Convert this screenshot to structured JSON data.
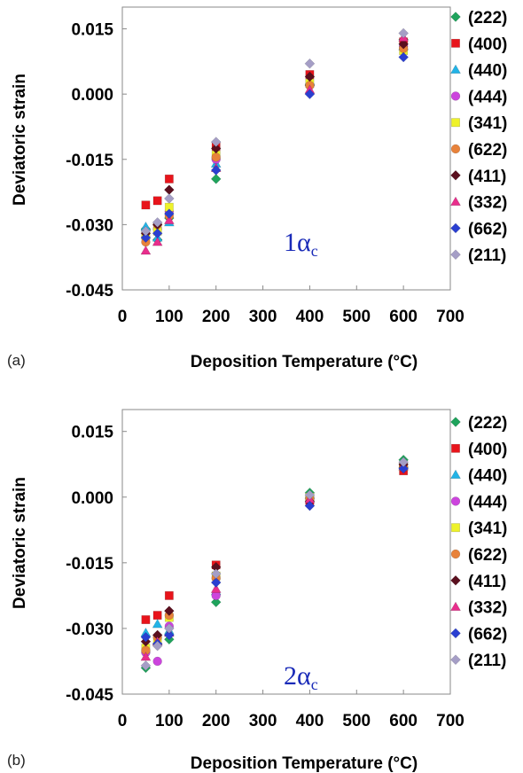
{
  "figure": {
    "panels": [
      "(a)",
      "(b)"
    ]
  },
  "chart_data": [
    {
      "type": "scatter",
      "panel": "(a)",
      "xlabel": "Deposition Temperature (°C)",
      "ylabel": "Deviatoric strain",
      "xlim": [
        0,
        700
      ],
      "ylim": [
        -0.045,
        0.02
      ],
      "xticks": [
        "0",
        "100",
        "200",
        "300",
        "400",
        "500",
        "600",
        "700"
      ],
      "yticks": [
        "0.015",
        "0.000",
        "-0.015",
        "-0.030",
        "-0.045"
      ],
      "annotation": {
        "main": "1α",
        "sub": "c"
      },
      "legend_position": "right",
      "series": [
        {
          "name": "(222)",
          "marker": "diamond",
          "color": "#1fa35c",
          "points": [
            [
              50,
              -0.031
            ],
            [
              75,
              -0.0335
            ],
            [
              100,
              -0.0285
            ],
            [
              200,
              -0.0195
            ],
            [
              400,
              0.002
            ],
            [
              600,
              0.0125
            ]
          ]
        },
        {
          "name": "(400)",
          "marker": "square",
          "color": "#e8141b",
          "points": [
            [
              50,
              -0.0255
            ],
            [
              75,
              -0.0245
            ],
            [
              100,
              -0.0195
            ],
            [
              200,
              -0.012
            ],
            [
              400,
              0.0045
            ],
            [
              600,
              0.012
            ]
          ]
        },
        {
          "name": "(440)",
          "marker": "triangle",
          "color": "#22b3e6",
          "points": [
            [
              50,
              -0.0305
            ],
            [
              75,
              -0.033
            ],
            [
              100,
              -0.0295
            ],
            [
              200,
              -0.016
            ],
            [
              400,
              0.003
            ],
            [
              600,
              0.011
            ]
          ]
        },
        {
          "name": "(444)",
          "marker": "circle",
          "color": "#cc44dd",
          "points": [
            [
              50,
              -0.033
            ],
            [
              75,
              -0.031
            ],
            [
              100,
              -0.027
            ],
            [
              200,
              -0.015
            ],
            [
              400,
              0.002
            ],
            [
              600,
              0.011
            ]
          ]
        },
        {
          "name": "(341)",
          "marker": "square",
          "color": "#eef22a",
          "points": [
            [
              50,
              -0.0325
            ],
            [
              75,
              -0.0315
            ],
            [
              100,
              -0.026
            ],
            [
              200,
              -0.014
            ],
            [
              400,
              0.0025
            ],
            [
              600,
              0.01
            ]
          ]
        },
        {
          "name": "(622)",
          "marker": "circle",
          "color": "#e8823a",
          "points": [
            [
              50,
              -0.034
            ],
            [
              75,
              -0.03
            ],
            [
              100,
              -0.028
            ],
            [
              200,
              -0.0145
            ],
            [
              400,
              0.002
            ],
            [
              600,
              0.0105
            ]
          ]
        },
        {
          "name": "(411)",
          "marker": "diamond",
          "color": "#5a0f1e",
          "points": [
            [
              50,
              -0.032
            ],
            [
              75,
              -0.03
            ],
            [
              100,
              -0.022
            ],
            [
              200,
              -0.0125
            ],
            [
              400,
              0.004
            ],
            [
              600,
              0.0115
            ]
          ]
        },
        {
          "name": "(332)",
          "marker": "triangle",
          "color": "#e82e8c",
          "points": [
            [
              50,
              -0.036
            ],
            [
              75,
              -0.034
            ],
            [
              100,
              -0.029
            ],
            [
              200,
              -0.017
            ],
            [
              400,
              0.001
            ],
            [
              600,
              0.013
            ]
          ]
        },
        {
          "name": "(662)",
          "marker": "diamond",
          "color": "#2a3fd1",
          "points": [
            [
              50,
              -0.033
            ],
            [
              75,
              -0.032
            ],
            [
              100,
              -0.0275
            ],
            [
              200,
              -0.0175
            ],
            [
              400,
              0.0
            ],
            [
              600,
              0.0085
            ]
          ]
        },
        {
          "name": "(211)",
          "marker": "diamond",
          "color": "#a59ec6",
          "points": [
            [
              50,
              -0.0315
            ],
            [
              75,
              -0.0295
            ],
            [
              100,
              -0.024
            ],
            [
              200,
              -0.011
            ],
            [
              400,
              0.007
            ],
            [
              600,
              0.014
            ]
          ]
        }
      ]
    },
    {
      "type": "scatter",
      "panel": "(b)",
      "xlabel": "Deposition Temperature (°C)",
      "ylabel": "Deviatoric strain",
      "xlim": [
        0,
        700
      ],
      "ylim": [
        -0.045,
        0.02
      ],
      "xticks": [
        "0",
        "100",
        "200",
        "300",
        "400",
        "500",
        "600",
        "700"
      ],
      "yticks": [
        "0.015",
        "0.000",
        "-0.015",
        "-0.030",
        "-0.045"
      ],
      "annotation": {
        "main": "2α",
        "sub": "c"
      },
      "legend_position": "right",
      "series": [
        {
          "name": "(222)",
          "marker": "diamond",
          "color": "#1fa35c",
          "points": [
            [
              50,
              -0.039
            ],
            [
              75,
              -0.0335
            ],
            [
              100,
              -0.0325
            ],
            [
              200,
              -0.024
            ],
            [
              400,
              0.001
            ],
            [
              600,
              0.0085
            ]
          ]
        },
        {
          "name": "(400)",
          "marker": "square",
          "color": "#e8141b",
          "points": [
            [
              50,
              -0.028
            ],
            [
              75,
              -0.027
            ],
            [
              100,
              -0.0225
            ],
            [
              200,
              -0.0155
            ],
            [
              400,
              -0.001
            ],
            [
              600,
              0.006
            ]
          ]
        },
        {
          "name": "(440)",
          "marker": "triangle",
          "color": "#22b3e6",
          "points": [
            [
              50,
              -0.031
            ],
            [
              75,
              -0.029
            ],
            [
              100,
              -0.0305
            ],
            [
              200,
              -0.0215
            ],
            [
              400,
              0.0005
            ],
            [
              600,
              0.0075
            ]
          ]
        },
        {
          "name": "(444)",
          "marker": "circle",
          "color": "#cc44dd",
          "points": [
            [
              50,
              -0.0355
            ],
            [
              75,
              -0.0375
            ],
            [
              100,
              -0.0295
            ],
            [
              200,
              -0.0225
            ],
            [
              400,
              0.0
            ],
            [
              600,
              0.007
            ]
          ]
        },
        {
          "name": "(341)",
          "marker": "square",
          "color": "#eef22a",
          "points": [
            [
              50,
              -0.0345
            ],
            [
              75,
              -0.033
            ],
            [
              100,
              -0.0275
            ],
            [
              200,
              -0.018
            ],
            [
              400,
              0.0
            ],
            [
              600,
              0.007
            ]
          ]
        },
        {
          "name": "(622)",
          "marker": "circle",
          "color": "#e8823a",
          "points": [
            [
              50,
              -0.035
            ],
            [
              75,
              -0.032
            ],
            [
              100,
              -0.027
            ],
            [
              200,
              -0.0185
            ],
            [
              400,
              -0.0005
            ],
            [
              600,
              0.007
            ]
          ]
        },
        {
          "name": "(411)",
          "marker": "diamond",
          "color": "#5a0f1e",
          "points": [
            [
              50,
              -0.033
            ],
            [
              75,
              -0.0315
            ],
            [
              100,
              -0.026
            ],
            [
              200,
              -0.016
            ],
            [
              400,
              -0.001
            ],
            [
              600,
              0.0075
            ]
          ]
        },
        {
          "name": "(332)",
          "marker": "triangle",
          "color": "#e82e8c",
          "points": [
            [
              50,
              -0.0365
            ],
            [
              75,
              -0.033
            ],
            [
              100,
              -0.031
            ],
            [
              200,
              -0.021
            ],
            [
              400,
              -0.0005
            ],
            [
              600,
              0.007
            ]
          ]
        },
        {
          "name": "(662)",
          "marker": "diamond",
          "color": "#2a3fd1",
          "points": [
            [
              50,
              -0.032
            ],
            [
              75,
              -0.0335
            ],
            [
              100,
              -0.0315
            ],
            [
              200,
              -0.0195
            ],
            [
              400,
              -0.002
            ],
            [
              600,
              0.0065
            ]
          ]
        },
        {
          "name": "(211)",
          "marker": "diamond",
          "color": "#a59ec6",
          "points": [
            [
              50,
              -0.0385
            ],
            [
              75,
              -0.034
            ],
            [
              100,
              -0.03
            ],
            [
              200,
              -0.0175
            ],
            [
              400,
              0.0005
            ],
            [
              600,
              0.008
            ]
          ]
        }
      ]
    }
  ]
}
